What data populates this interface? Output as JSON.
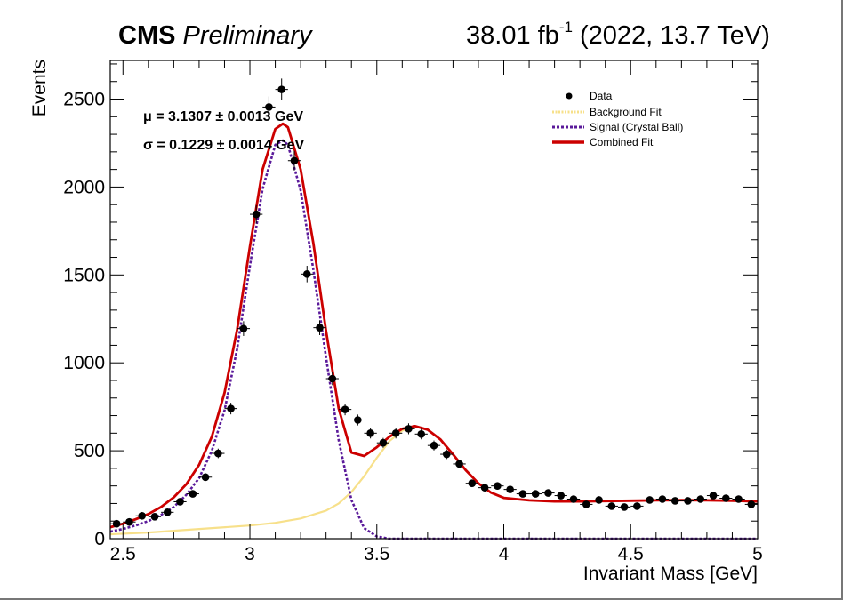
{
  "header": {
    "experiment": "CMS",
    "status": "Preliminary",
    "lumi_value": "38.01 fb",
    "lumi_exp": "-1",
    "lumi_tail": " (2022, 13.7 TeV)"
  },
  "annotations": {
    "mu": "μ = 3.1307 ± 0.0013 GeV",
    "sigma": "σ = 0.1229 ± 0.0014 GeV"
  },
  "colors": {
    "data": "#000000",
    "background": "#f7e08a",
    "signal": "#5a1a9a",
    "combined": "#cc0000"
  },
  "chart_data": {
    "type": "scatter",
    "xlabel": "Invariant Mass [GeV]",
    "ylabel": "Events",
    "xlim": [
      2.45,
      5.0
    ],
    "ylim": [
      0,
      2720
    ],
    "xticks": [
      "2.5",
      "3",
      "3.5",
      "4",
      "4.5",
      "5"
    ],
    "yticks": [
      "0",
      "500",
      "1000",
      "1500",
      "2000",
      "2500"
    ],
    "legend_position": "top-right",
    "legend": [
      "Data",
      "Background Fit",
      "Signal (Crystal Ball)",
      "Combined Fit"
    ],
    "series": [
      {
        "name": "Data",
        "x": [
          2.475,
          2.525,
          2.575,
          2.625,
          2.675,
          2.725,
          2.775,
          2.825,
          2.875,
          2.925,
          2.975,
          3.025,
          3.075,
          3.125,
          3.175,
          3.225,
          3.275,
          3.325,
          3.375,
          3.425,
          3.475,
          3.525,
          3.575,
          3.625,
          3.675,
          3.725,
          3.775,
          3.825,
          3.875,
          3.925,
          3.975,
          4.025,
          4.075,
          4.125,
          4.175,
          4.225,
          4.275,
          4.325,
          4.375,
          4.425,
          4.475,
          4.525,
          4.575,
          4.625,
          4.675,
          4.725,
          4.775,
          4.825,
          4.875,
          4.925,
          4.975
        ],
        "y": [
          85,
          95,
          130,
          125,
          150,
          210,
          255,
          350,
          485,
          740,
          1195,
          1845,
          2455,
          2555,
          2150,
          1505,
          1200,
          910,
          735,
          675,
          600,
          545,
          600,
          625,
          595,
          530,
          480,
          425,
          315,
          290,
          300,
          280,
          255,
          255,
          260,
          245,
          225,
          195,
          220,
          185,
          180,
          185,
          220,
          225,
          215,
          215,
          225,
          245,
          230,
          225,
          195
        ],
        "yerr": [
          12,
          12,
          14,
          14,
          15,
          18,
          20,
          22,
          27,
          33,
          42,
          52,
          60,
          62,
          56,
          47,
          42,
          37,
          33,
          31,
          30,
          28,
          30,
          31,
          30,
          28,
          27,
          25,
          22,
          21,
          21,
          20,
          19,
          19,
          19,
          19,
          18,
          17,
          18,
          17,
          16,
          17,
          18,
          18,
          18,
          18,
          18,
          19,
          18,
          18,
          17
        ]
      },
      {
        "name": "Background Fit",
        "x": [
          2.45,
          2.6,
          2.8,
          3.0,
          3.1,
          3.2,
          3.3,
          3.35,
          3.4,
          3.45,
          3.5,
          3.55,
          3.6,
          3.65,
          3.7,
          3.75,
          3.8,
          3.85,
          3.9,
          3.95,
          4.0,
          4.1,
          4.2,
          4.3,
          4.4,
          4.5,
          4.6,
          4.7,
          4.8,
          4.9,
          5.0
        ],
        "y": [
          25,
          35,
          55,
          75,
          90,
          115,
          160,
          200,
          265,
          355,
          460,
          555,
          615,
          640,
          620,
          565,
          480,
          390,
          315,
          262,
          232,
          218,
          212,
          212,
          214,
          216,
          218,
          219,
          218,
          216,
          212
        ]
      },
      {
        "name": "Signal (Crystal Ball)",
        "x": [
          2.45,
          2.5,
          2.55,
          2.6,
          2.65,
          2.7,
          2.75,
          2.8,
          2.85,
          2.9,
          2.95,
          3.0,
          3.05,
          3.1,
          3.13,
          3.15,
          3.2,
          3.25,
          3.3,
          3.35,
          3.4,
          3.45,
          3.5,
          3.55,
          4.0,
          5.0
        ],
        "y": [
          40,
          55,
          75,
          100,
          135,
          180,
          250,
          345,
          500,
          730,
          1080,
          1550,
          1990,
          2240,
          2265,
          2240,
          1980,
          1530,
          1030,
          560,
          220,
          60,
          12,
          0,
          0,
          0
        ]
      },
      {
        "name": "Combined Fit",
        "x": [
          2.45,
          2.5,
          2.55,
          2.6,
          2.65,
          2.7,
          2.75,
          2.8,
          2.85,
          2.9,
          2.95,
          3.0,
          3.05,
          3.1,
          3.13,
          3.15,
          3.2,
          3.25,
          3.3,
          3.35,
          3.4,
          3.45,
          3.5,
          3.55,
          3.6,
          3.65,
          3.7,
          3.75,
          3.8,
          3.85,
          3.9,
          3.95,
          4.0,
          4.1,
          4.2,
          4.3,
          4.4,
          4.5,
          4.6,
          4.7,
          4.8,
          4.9,
          5.0
        ],
        "y": [
          65,
          85,
          110,
          140,
          180,
          235,
          310,
          420,
          580,
          830,
          1190,
          1660,
          2100,
          2330,
          2360,
          2340,
          2100,
          1680,
          1180,
          740,
          490,
          470,
          520,
          580,
          625,
          640,
          620,
          565,
          480,
          390,
          315,
          262,
          232,
          218,
          212,
          212,
          214,
          216,
          218,
          219,
          218,
          216,
          212
        ]
      }
    ]
  }
}
